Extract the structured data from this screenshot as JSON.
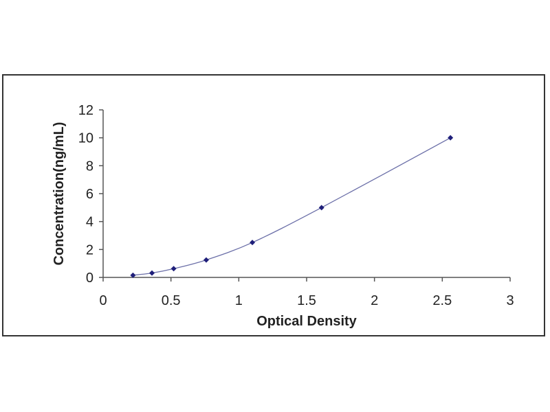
{
  "chart_data": {
    "type": "scatter",
    "title": "",
    "xlabel": "Optical Density",
    "ylabel": "Concentration(ng/mL)",
    "xlim": [
      0,
      3
    ],
    "ylim": [
      0,
      12
    ],
    "xticks": [
      "0",
      "0.5",
      "1",
      "1.5",
      "2",
      "2.5",
      "3"
    ],
    "yticks": [
      "0",
      "2",
      "4",
      "6",
      "8",
      "10",
      "12"
    ],
    "grid": false,
    "legend": "none",
    "series": [
      {
        "x": [
          0.22,
          0.36,
          0.52,
          0.76,
          1.1,
          1.61,
          2.56
        ],
        "y": [
          0.156,
          0.312,
          0.625,
          1.25,
          2.5,
          5,
          10
        ],
        "marker_color": "#1f1f7a",
        "line_color": "#6b6fa8",
        "fit_line": true
      }
    ]
  }
}
